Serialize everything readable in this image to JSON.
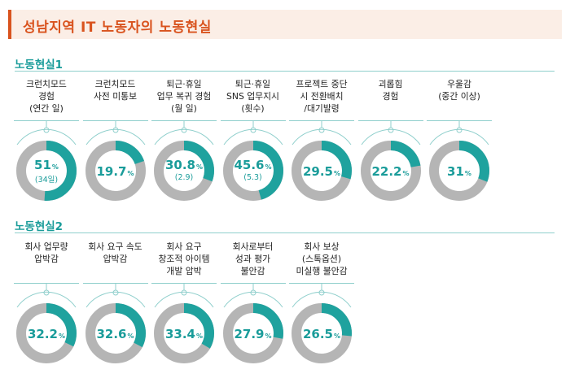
{
  "title": "성남지역 IT 노동자의 노동현실",
  "colors": {
    "accent": "#d9531e",
    "teal": "#1fa29e",
    "grey": "#b5b5b5"
  },
  "chart_data": [
    {
      "type": "pie",
      "section": "노동현실1",
      "items": [
        {
          "label": "크런치모드\n경험\n(연간 일)",
          "value": 51,
          "value_text": "51",
          "sub": "(34일)"
        },
        {
          "label": "크런치모드\n사전 미통보",
          "value": 19.7,
          "value_text": "19.7",
          "sub": ""
        },
        {
          "label": "퇴근·휴일\n업무 복귀 경험\n(월 일)",
          "value": 30.8,
          "value_text": "30.8",
          "sub": "(2.9)"
        },
        {
          "label": "퇴근·휴일\nSNS 업무지시\n(횟수)",
          "value": 45.6,
          "value_text": "45.6",
          "sub": "(5.3)"
        },
        {
          "label": "프로젝트 중단\n시 전환배치\n/대기발령",
          "value": 29.5,
          "value_text": "29.5",
          "sub": ""
        },
        {
          "label": "괴롭힘\n경험",
          "value": 22.2,
          "value_text": "22.2",
          "sub": ""
        },
        {
          "label": "우울감\n(중간 이상)",
          "value": 31,
          "value_text": "31",
          "sub": ""
        }
      ]
    },
    {
      "type": "pie",
      "section": "노동현실2",
      "items": [
        {
          "label": "회사 업무량\n압박감",
          "value": 32.2,
          "value_text": "32.2",
          "sub": ""
        },
        {
          "label": "회사 요구 속도\n압박감",
          "value": 32.6,
          "value_text": "32.6",
          "sub": ""
        },
        {
          "label": "회사 요구\n창조적 아이템\n개발 압박",
          "value": 33.4,
          "value_text": "33.4",
          "sub": ""
        },
        {
          "label": "회사로부터\n성과 평가\n불안감",
          "value": 27.9,
          "value_text": "27.9",
          "sub": ""
        },
        {
          "label": "회사 보상\n(스톡옵션)\n미실행 불안감",
          "value": 26.5,
          "value_text": "26.5",
          "sub": ""
        }
      ]
    }
  ],
  "unit": "%"
}
